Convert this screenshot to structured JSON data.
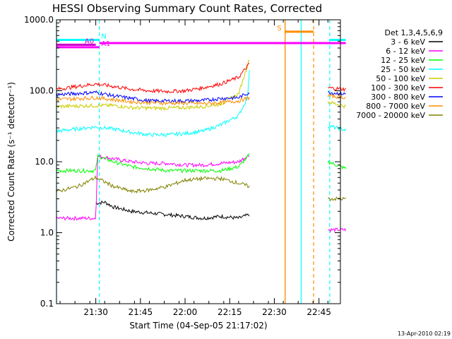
{
  "chart_data": {
    "type": "line",
    "title": "HESSI Observing Summary Count Rates, Corrected",
    "xlabel": "Start Time (04-Sep-05 21:17:02)",
    "ylabel": "Corrected Count Rate (s⁻¹ detector⁻¹)",
    "yscale": "log",
    "ylim": [
      0.1,
      1000
    ],
    "xlim_minutes": [
      21.28,
      22.87
    ],
    "x_unit": "hours since 21:17",
    "yticks": [
      {
        "value": 0.1,
        "label": "0.1"
      },
      {
        "value": 1,
        "label": "1.0"
      },
      {
        "value": 10,
        "label": "10.0"
      },
      {
        "value": 100,
        "label": "100.0"
      },
      {
        "value": 1000,
        "label": "1000.0"
      }
    ],
    "xticks": [
      {
        "value": 21.5,
        "label": "21:30"
      },
      {
        "value": 21.75,
        "label": "21:45"
      },
      {
        "value": 22.0,
        "label": "22:00"
      },
      {
        "value": 22.25,
        "label": "22:15"
      },
      {
        "value": 22.5,
        "label": "22:30"
      },
      {
        "value": 22.75,
        "label": "22:45"
      }
    ],
    "legend": {
      "placement": "outside-right",
      "header": "Det 1,3,4,5,6,9"
    },
    "series": [
      {
        "name": "3 - 6 keV",
        "color": "#000000",
        "points": [
          [
            21.5,
            2.6
          ],
          [
            21.55,
            2.7
          ],
          [
            21.6,
            2.3
          ],
          [
            21.7,
            2.0
          ],
          [
            21.8,
            1.9
          ],
          [
            21.9,
            1.8
          ],
          [
            22.0,
            1.7
          ],
          [
            22.1,
            1.6
          ],
          [
            22.2,
            1.7
          ],
          [
            22.3,
            1.6
          ],
          [
            22.36,
            1.8
          ]
        ]
      },
      {
        "name": "6 - 12 keV",
        "color": "#ff00ff",
        "points": [
          [
            21.28,
            1.6
          ],
          [
            21.5,
            1.6
          ],
          [
            21.51,
            12.0
          ],
          [
            21.6,
            11.0
          ],
          [
            21.7,
            10.0
          ],
          [
            21.8,
            9.5
          ],
          [
            21.9,
            9.5
          ],
          [
            22.0,
            9.0
          ],
          [
            22.1,
            9.0
          ],
          [
            22.2,
            9.5
          ],
          [
            22.3,
            10.0
          ],
          [
            22.36,
            12.5
          ]
        ],
        "points_after": [
          [
            22.8,
            1.1
          ],
          [
            22.9,
            1.1
          ]
        ]
      },
      {
        "name": "12 - 25 keV",
        "color": "#00ff00",
        "points": [
          [
            21.28,
            7.5
          ],
          [
            21.5,
            7.5
          ],
          [
            21.51,
            12.0
          ],
          [
            21.6,
            10.0
          ],
          [
            21.7,
            8.5
          ],
          [
            21.8,
            8.0
          ],
          [
            21.9,
            7.5
          ],
          [
            22.0,
            7.5
          ],
          [
            22.1,
            7.5
          ],
          [
            22.2,
            7.5
          ],
          [
            22.3,
            8.5
          ],
          [
            22.36,
            12.5
          ]
        ],
        "points_after": [
          [
            22.8,
            10.0
          ],
          [
            22.9,
            8.0
          ]
        ]
      },
      {
        "name": "25 - 50 keV",
        "color": "#00ffff",
        "points": [
          [
            21.28,
            27
          ],
          [
            21.5,
            31
          ],
          [
            21.6,
            29
          ],
          [
            21.7,
            26
          ],
          [
            21.8,
            24
          ],
          [
            21.9,
            24
          ],
          [
            22.0,
            25
          ],
          [
            22.1,
            27
          ],
          [
            22.2,
            33
          ],
          [
            22.3,
            45
          ],
          [
            22.35,
            80
          ],
          [
            22.36,
            200
          ]
        ],
        "points_after": [
          [
            22.8,
            32
          ],
          [
            22.9,
            28
          ]
        ]
      },
      {
        "name": "50 - 100 keV",
        "color": "#cccc00",
        "points": [
          [
            21.28,
            60
          ],
          [
            21.5,
            62
          ],
          [
            21.6,
            62
          ],
          [
            21.7,
            58
          ],
          [
            21.8,
            57
          ],
          [
            21.9,
            57
          ],
          [
            22.0,
            58
          ],
          [
            22.1,
            60
          ],
          [
            22.2,
            65
          ],
          [
            22.3,
            90
          ],
          [
            22.36,
            280
          ]
        ],
        "points_after": [
          [
            22.8,
            70
          ],
          [
            22.9,
            60
          ]
        ]
      },
      {
        "name": "100 - 300 keV",
        "color": "#ff0000",
        "points": [
          [
            21.28,
            105
          ],
          [
            21.5,
            125
          ],
          [
            21.6,
            115
          ],
          [
            21.7,
            105
          ],
          [
            21.8,
            100
          ],
          [
            21.9,
            98
          ],
          [
            22.0,
            100
          ],
          [
            22.1,
            110
          ],
          [
            22.2,
            125
          ],
          [
            22.3,
            155
          ],
          [
            22.36,
            240
          ]
        ],
        "points_after": [
          [
            22.8,
            110
          ],
          [
            22.9,
            105
          ]
        ]
      },
      {
        "name": "300 - 800 keV",
        "color": "#0000ff",
        "points": [
          [
            21.28,
            88
          ],
          [
            21.5,
            95
          ],
          [
            21.6,
            85
          ],
          [
            21.7,
            78
          ],
          [
            21.8,
            72
          ],
          [
            21.9,
            72
          ],
          [
            22.0,
            72
          ],
          [
            22.1,
            73
          ],
          [
            22.2,
            78
          ],
          [
            22.3,
            80
          ],
          [
            22.36,
            95
          ]
        ],
        "points_after": [
          [
            22.8,
            95
          ],
          [
            22.9,
            90
          ]
        ]
      },
      {
        "name": "800 - 7000 keV",
        "color": "#ff8c00",
        "points": [
          [
            21.28,
            75
          ],
          [
            21.5,
            80
          ],
          [
            21.6,
            75
          ],
          [
            21.7,
            70
          ],
          [
            21.8,
            68
          ],
          [
            21.9,
            67
          ],
          [
            22.0,
            67
          ],
          [
            22.1,
            66
          ],
          [
            22.2,
            68
          ],
          [
            22.3,
            72
          ],
          [
            22.36,
            80
          ]
        ],
        "points_after": [
          [
            22.8,
            85
          ],
          [
            22.9,
            80
          ]
        ]
      },
      {
        "name": "7000 - 20000 keV",
        "color": "#808000",
        "points": [
          [
            21.28,
            3.8
          ],
          [
            21.4,
            4.5
          ],
          [
            21.5,
            6.0
          ],
          [
            21.6,
            4.5
          ],
          [
            21.7,
            3.8
          ],
          [
            21.8,
            4.0
          ],
          [
            21.9,
            4.5
          ],
          [
            22.0,
            5.5
          ],
          [
            22.1,
            5.8
          ],
          [
            22.2,
            5.8
          ],
          [
            22.3,
            5.0
          ],
          [
            22.36,
            4.5
          ]
        ],
        "points_after": [
          [
            22.8,
            3.0
          ],
          [
            22.9,
            3.0
          ]
        ]
      }
    ],
    "flag_bars": [
      {
        "label": "N",
        "color": "#00ffff",
        "y": 520,
        "x": [
          21.28,
          21.52
        ],
        "label_x": 21.53
      },
      {
        "label": "A0",
        "color": "#cc00cc",
        "y": 445,
        "x": [
          21.28,
          21.5
        ],
        "label_x": 21.49,
        "label_side": "left"
      },
      {
        "label": "A1",
        "color": "#ff00ff",
        "y": 410,
        "x": [
          21.28,
          21.52
        ],
        "label_x": 21.53
      },
      {
        "label": "",
        "color": "#ff00ff",
        "y": 470,
        "x": [
          21.52,
          22.9
        ]
      },
      {
        "label": "S",
        "color": "#ff8c00",
        "y": 680,
        "x": [
          22.56,
          22.72
        ],
        "label_x": 22.54,
        "label_side": "left"
      },
      {
        "label": "",
        "color": "#00ffff",
        "y": 520,
        "x": [
          22.81,
          22.9
        ]
      }
    ],
    "vertical_lines": [
      {
        "x": 21.28,
        "color": "#00ffff",
        "style": "solid"
      },
      {
        "x": 21.52,
        "color": "#00ffff",
        "style": "dashed"
      },
      {
        "x": 22.56,
        "color": "#cc8800",
        "style": "solid"
      },
      {
        "x": 22.56,
        "color": "#ff8c00",
        "style": "solid"
      },
      {
        "x": 22.65,
        "color": "#00ffff",
        "style": "solid"
      },
      {
        "x": 22.72,
        "color": "#ff8c00",
        "style": "dashed"
      },
      {
        "x": 22.81,
        "color": "#00ffff",
        "style": "dashed"
      }
    ],
    "timestamp": "13-Apr-2010 02:19"
  }
}
